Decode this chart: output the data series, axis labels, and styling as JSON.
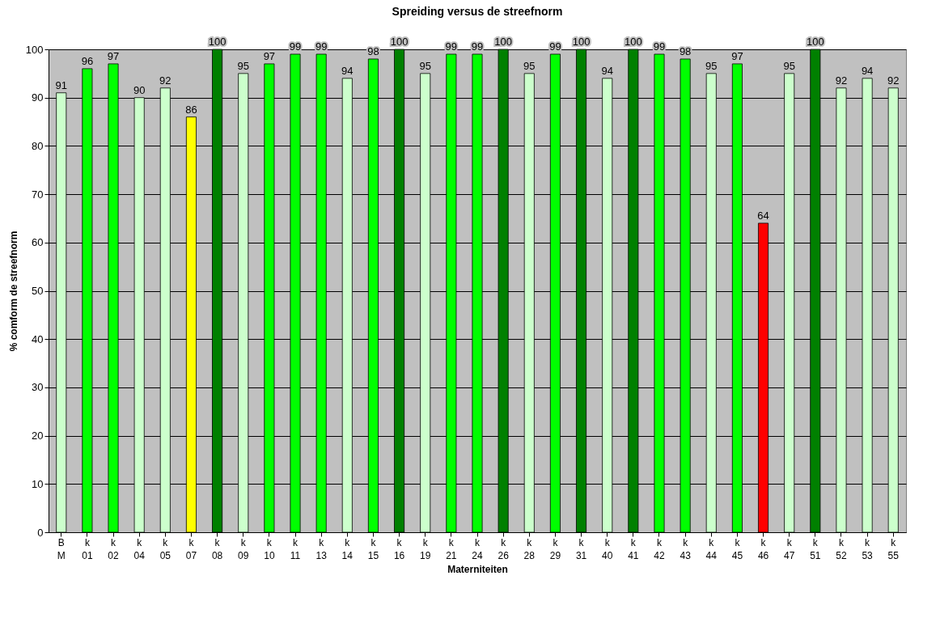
{
  "chart_data": {
    "type": "bar",
    "title": "Spreiding versus de streefnorm",
    "xlabel": "Materniteiten",
    "ylabel": "% comform de streefnorm",
    "categories": [
      "B M",
      "k 01",
      "k 02",
      "k 04",
      "k 05",
      "k 07",
      "k 08",
      "k 09",
      "k 10",
      "k 11",
      "k 13",
      "k 14",
      "k 15",
      "k 16",
      "k 19",
      "k 21",
      "k 24",
      "k 26",
      "k 28",
      "k 29",
      "k 31",
      "k 40",
      "k 41",
      "k 42",
      "k 43",
      "k 44",
      "k 45",
      "k 46",
      "k 47",
      "k 51",
      "k 52",
      "k 53",
      "k 55"
    ],
    "values": [
      91,
      96,
      97,
      90,
      92,
      86,
      100,
      95,
      97,
      99,
      99,
      94,
      98,
      100,
      95,
      99,
      99,
      100,
      95,
      99,
      100,
      94,
      100,
      99,
      98,
      95,
      97,
      64,
      95,
      100,
      92,
      94,
      92
    ],
    "colors": [
      "#ccffcc",
      "#00ff00",
      "#00ff00",
      "#ccffcc",
      "#ccffcc",
      "#ffff00",
      "#008000",
      "#ccffcc",
      "#00ff00",
      "#00ff00",
      "#00ff00",
      "#ccffcc",
      "#00ff00",
      "#008000",
      "#ccffcc",
      "#00ff00",
      "#00ff00",
      "#008000",
      "#ccffcc",
      "#00ff00",
      "#008000",
      "#ccffcc",
      "#008000",
      "#00ff00",
      "#00ff00",
      "#ccffcc",
      "#00ff00",
      "#ff0000",
      "#ccffcc",
      "#008000",
      "#ccffcc",
      "#ccffcc",
      "#ccffcc"
    ],
    "ylim": [
      0,
      100
    ],
    "yticks": [
      0,
      10,
      20,
      30,
      40,
      50,
      60,
      70,
      80,
      90,
      100
    ],
    "grid": "y",
    "data_labels": true
  }
}
